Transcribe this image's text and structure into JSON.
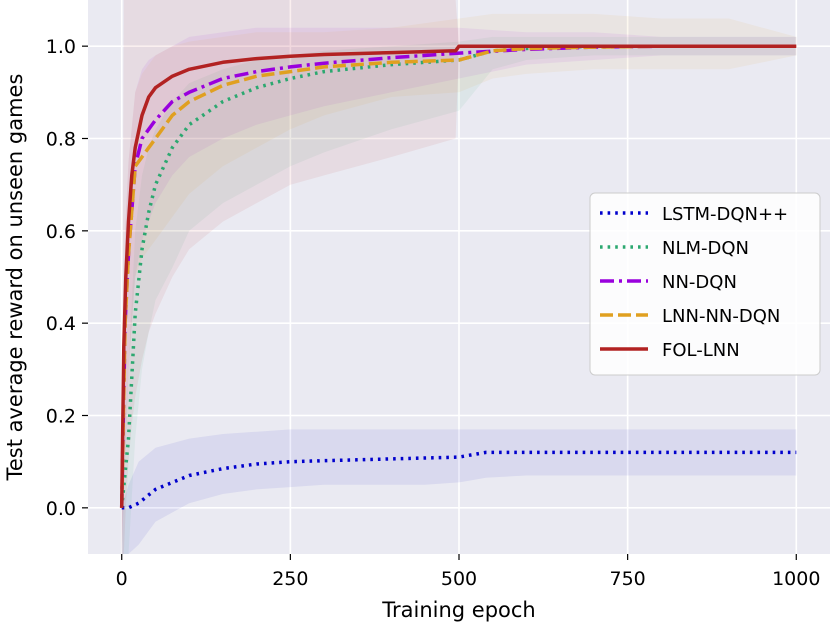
{
  "chart_data": {
    "type": "line",
    "title": "",
    "xlabel": "Training epoch",
    "ylabel": "Test average reward on unseen games",
    "xlim": [
      -50,
      1050
    ],
    "ylim": [
      -0.1,
      1.1
    ],
    "xticks": [
      0,
      250,
      500,
      750,
      1000
    ],
    "yticks": [
      0.0,
      0.2,
      0.4,
      0.6,
      0.8,
      1.0
    ],
    "xtick_labels": [
      "0",
      "250",
      "500",
      "750",
      "1000"
    ],
    "ytick_labels": [
      "0.0",
      "0.2",
      "0.4",
      "0.6",
      "0.8",
      "1.0"
    ],
    "grid": true,
    "background": "#eaeaf2",
    "legend_position": "center-right",
    "series": [
      {
        "name": "LSTM-DQN++",
        "color": "#0000cc",
        "style": "dotted",
        "x": [
          0,
          10,
          25,
          50,
          100,
          150,
          200,
          250,
          300,
          350,
          400,
          450,
          500,
          520,
          540,
          600,
          700,
          800,
          900,
          1000
        ],
        "y": [
          0.0,
          0.0,
          0.01,
          0.04,
          0.07,
          0.085,
          0.095,
          0.1,
          0.102,
          0.104,
          0.106,
          0.108,
          0.11,
          0.115,
          0.12,
          0.12,
          0.12,
          0.12,
          0.12,
          0.12
        ],
        "upper": [
          0.0,
          0.05,
          0.1,
          0.13,
          0.15,
          0.16,
          0.165,
          0.17,
          0.17,
          0.17,
          0.17,
          0.17,
          0.17,
          0.17,
          0.17,
          0.17,
          0.17,
          0.17,
          0.17,
          0.17
        ],
        "lower": [
          -0.1,
          -0.1,
          -0.08,
          -0.03,
          0.01,
          0.03,
          0.04,
          0.045,
          0.05,
          0.05,
          0.05,
          0.05,
          0.055,
          0.06,
          0.065,
          0.07,
          0.07,
          0.07,
          0.07,
          0.07
        ]
      },
      {
        "name": "NLM-DQN",
        "color": "#2ca870",
        "style": "dotted",
        "x": [
          0,
          10,
          20,
          30,
          40,
          50,
          75,
          100,
          150,
          200,
          250,
          300,
          400,
          500,
          550,
          600,
          700,
          800,
          900,
          1000
        ],
        "y": [
          0.0,
          0.15,
          0.42,
          0.56,
          0.64,
          0.7,
          0.78,
          0.83,
          0.88,
          0.91,
          0.93,
          0.945,
          0.96,
          0.97,
          0.99,
          0.995,
          1.0,
          1.0,
          1.0,
          1.0
        ],
        "upper": [
          0.0,
          0.3,
          0.6,
          0.72,
          0.78,
          0.82,
          0.88,
          0.92,
          0.95,
          0.97,
          0.98,
          0.99,
          1.0,
          1.01,
          1.02,
          1.02,
          1.02,
          1.02,
          1.02,
          1.02
        ],
        "lower": [
          -0.1,
          -0.1,
          0.15,
          0.3,
          0.38,
          0.45,
          0.52,
          0.6,
          0.66,
          0.7,
          0.74,
          0.77,
          0.82,
          0.86,
          0.95,
          0.97,
          0.98,
          0.98,
          0.98,
          0.98
        ]
      },
      {
        "name": "NN-DQN",
        "color": "#9900dd",
        "style": "dashdot",
        "x": [
          0,
          5,
          10,
          20,
          30,
          40,
          50,
          75,
          100,
          150,
          200,
          250,
          300,
          400,
          500,
          600,
          700,
          800,
          900,
          1000
        ],
        "y": [
          0.0,
          0.4,
          0.55,
          0.74,
          0.8,
          0.82,
          0.84,
          0.88,
          0.9,
          0.93,
          0.945,
          0.955,
          0.963,
          0.975,
          0.985,
          0.993,
          0.998,
          1.0,
          1.0,
          1.0
        ],
        "upper": [
          0.0,
          0.6,
          0.75,
          0.9,
          0.95,
          0.97,
          0.98,
          1.0,
          1.02,
          1.03,
          1.04,
          1.04,
          1.04,
          1.04,
          1.04,
          1.03,
          1.03,
          1.02,
          1.02,
          1.02
        ],
        "lower": [
          -0.1,
          0.1,
          0.3,
          0.5,
          0.58,
          0.62,
          0.66,
          0.72,
          0.76,
          0.8,
          0.83,
          0.85,
          0.87,
          0.9,
          0.93,
          0.96,
          0.97,
          0.98,
          0.98,
          0.98
        ]
      },
      {
        "name": "LNN-NN-DQN",
        "color": "#e0a020",
        "style": "dashed",
        "x": [
          0,
          5,
          10,
          20,
          30,
          40,
          50,
          75,
          100,
          150,
          200,
          250,
          300,
          400,
          500,
          550,
          600,
          700,
          800,
          900,
          1000
        ],
        "y": [
          0.0,
          0.4,
          0.55,
          0.74,
          0.76,
          0.78,
          0.8,
          0.85,
          0.88,
          0.915,
          0.935,
          0.945,
          0.955,
          0.965,
          0.97,
          0.99,
          0.995,
          0.998,
          1.0,
          1.0,
          1.0
        ],
        "upper": [
          0.0,
          0.6,
          0.75,
          0.9,
          0.94,
          0.96,
          0.98,
          1.0,
          1.01,
          1.02,
          1.03,
          1.03,
          1.03,
          1.04,
          1.06,
          1.07,
          1.07,
          1.07,
          1.06,
          1.06,
          1.02
        ],
        "lower": [
          -0.1,
          0.1,
          0.3,
          0.5,
          0.54,
          0.56,
          0.58,
          0.63,
          0.68,
          0.74,
          0.78,
          0.82,
          0.85,
          0.89,
          0.9,
          0.93,
          0.94,
          0.95,
          0.95,
          0.95,
          0.98
        ]
      },
      {
        "name": "FOL-LNN",
        "color": "#b22222",
        "style": "solid",
        "x": [
          0,
          3,
          6,
          10,
          15,
          20,
          30,
          40,
          50,
          75,
          100,
          150,
          200,
          250,
          300,
          400,
          495,
          500,
          510,
          600,
          700,
          800,
          900,
          1000
        ],
        "y": [
          0.0,
          0.35,
          0.5,
          0.62,
          0.72,
          0.78,
          0.85,
          0.89,
          0.91,
          0.935,
          0.95,
          0.965,
          0.973,
          0.978,
          0.982,
          0.986,
          0.99,
          1.0,
          1.0,
          1.0,
          1.0,
          1.0,
          1.0,
          1.0
        ],
        "upper": [
          0.0,
          1.1,
          1.1,
          1.1,
          1.1,
          1.1,
          1.1,
          1.1,
          1.1,
          1.1,
          1.1,
          1.1,
          1.1,
          1.1,
          1.1,
          1.1,
          1.1,
          1.0,
          1.0,
          1.0,
          1.0,
          1.0,
          1.0,
          1.0
        ],
        "lower": [
          -0.1,
          -0.1,
          0.0,
          0.1,
          0.18,
          0.24,
          0.32,
          0.38,
          0.42,
          0.5,
          0.56,
          0.62,
          0.66,
          0.7,
          0.72,
          0.76,
          0.8,
          1.0,
          1.0,
          1.0,
          1.0,
          1.0,
          1.0,
          1.0
        ]
      }
    ]
  }
}
